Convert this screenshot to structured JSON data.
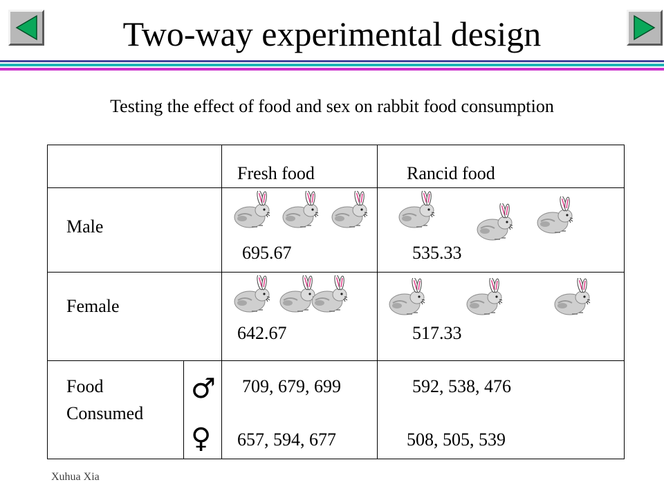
{
  "slide": {
    "title": "Two-way experimental design",
    "subtitle": "Testing the effect of food and sex on rabbit food consumption",
    "footer": "Xuhua Xia"
  },
  "nav": {
    "prev_icon": "left-arrow-icon",
    "next_icon": "right-arrow-icon",
    "button_color": "#b8b8b8",
    "arrow_color": "#0aa85a"
  },
  "colors": {
    "rule_dark": "#44449a",
    "rule_teal": "#1fb5b5",
    "rule_magenta": "#cc33cc"
  },
  "table": {
    "columns": [
      "Fresh food",
      "Rancid food"
    ],
    "rows": [
      {
        "label": "Male",
        "fresh_mean": "695.67",
        "rancid_mean": "535.33"
      },
      {
        "label": "Female",
        "fresh_mean": "642.67",
        "rancid_mean": "517.33"
      }
    ],
    "consumed": {
      "label_line1": "Food",
      "label_line2": "Consumed",
      "male_symbol": "♂",
      "female_symbol": "♀",
      "male_fresh": "709, 679, 699",
      "male_rancid": "592, 538, 476",
      "female_fresh": "657, 594, 677",
      "female_rancid": "508, 505, 539"
    }
  }
}
